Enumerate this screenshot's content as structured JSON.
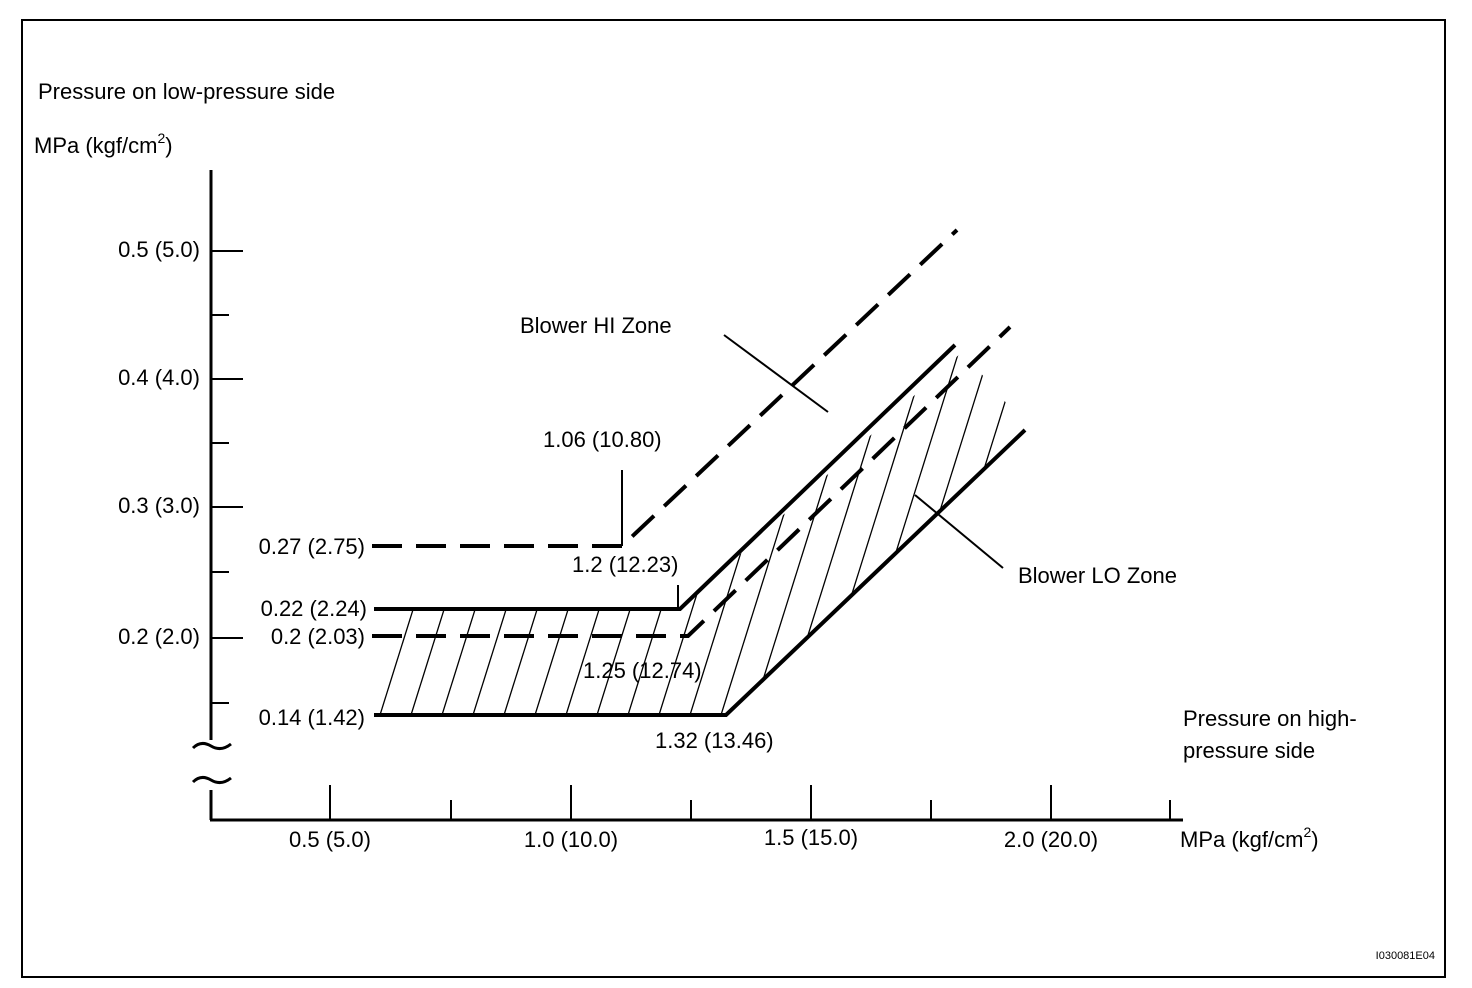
{
  "y_axis": {
    "title": "Pressure on low-pressure side",
    "unit": {
      "text": "MPa (kgf/cm",
      "sup": "2",
      "close": ")"
    },
    "ticks": [
      "0.5 (5.0)",
      "0.4 (4.0)",
      "0.3 (3.0)",
      "0.2 (2.0)"
    ]
  },
  "x_axis": {
    "title": [
      "Pressure on high-",
      "pressure side"
    ],
    "unit": {
      "text": "MPa (kgf/cm",
      "sup": "2",
      "close": ")"
    },
    "ticks": [
      "0.5 (5.0)",
      "1.0 (10.0)",
      "1.5 (15.0)",
      "2.0 (20.0)"
    ]
  },
  "zones": {
    "hi": "Blower HI Zone",
    "lo": "Blower LO Zone"
  },
  "points": {
    "low_left": [
      "0.27 (2.75)",
      "0.22 (2.24)",
      "0.2 (2.03)",
      "0.14 (1.42)"
    ],
    "high": [
      "1.06 (10.80)",
      "1.2 (12.23)",
      "1.25 (12.74)",
      "1.32 (13.46)"
    ]
  },
  "figure_code": "I030081E04"
}
